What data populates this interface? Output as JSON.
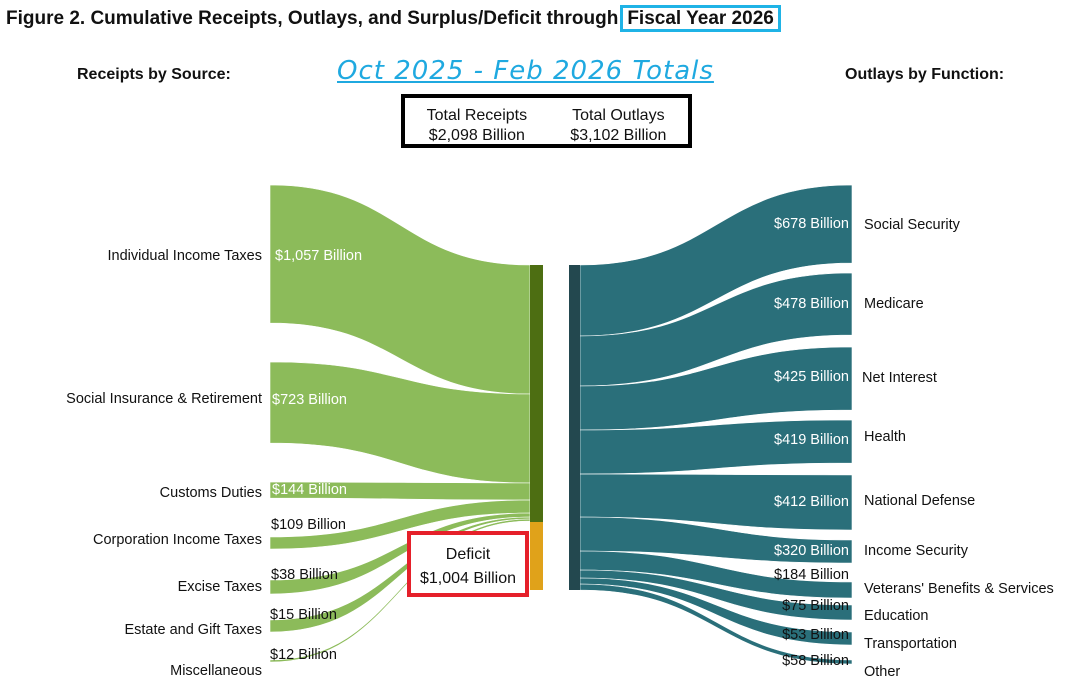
{
  "title": "Figure 2. Cumulative Receipts, Outlays, and Surplus/Deficit through",
  "title_highlight": "Fiscal Year 2026",
  "subtitle": "Oct 2025 - Feb 2026 Totals",
  "receipts_header": "Receipts by Source:",
  "outlays_header": "Outlays by Function:",
  "totals": {
    "receipts_label": "Total Receipts",
    "receipts_value": "$2,098 Billion",
    "outlays_label": "Total Outlays",
    "outlays_value": "$3,102 Billion"
  },
  "deficit": {
    "label": "Deficit",
    "value": "$1,004 Billion"
  },
  "colors": {
    "receipts": "#8cbb5a",
    "receipts_node": "#4d6e12",
    "deficit_node": "#e0a21a",
    "outlays": "#2a6f7a",
    "outlays_node": "#23484f",
    "highlight_box": "#1fb3e6",
    "deficit_box": "#e5202a"
  },
  "receipts": [
    {
      "label": "Individual Income Taxes",
      "value": "$1,057 Billion"
    },
    {
      "label": "Social Insurance & Retirement",
      "value": "$723 Billion"
    },
    {
      "label": "Customs Duties",
      "value": "$144 Billion"
    },
    {
      "label": "Corporation Income Taxes",
      "value": "$109 Billion"
    },
    {
      "label": "Excise Taxes",
      "value": "$38 Billion"
    },
    {
      "label": "Estate and Gift Taxes",
      "value": "$15 Billion"
    },
    {
      "label": "Miscellaneous",
      "value": "$12 Billion"
    }
  ],
  "outlays": [
    {
      "label": "Social Security",
      "value": "$678 Billion"
    },
    {
      "label": "Medicare",
      "value": "$478 Billion"
    },
    {
      "label": "Net Interest",
      "value": "$425 Billion"
    },
    {
      "label": "Health",
      "value": "$419 Billion"
    },
    {
      "label": "National Defense",
      "value": "$412 Billion"
    },
    {
      "label": "Income Security",
      "value": "$320 Billion"
    },
    {
      "label": "Veterans' Benefits & Services",
      "value": "$184 Billion"
    },
    {
      "label": "Education",
      "value": "$75 Billion"
    },
    {
      "label": "Transportation",
      "value": "$53 Billion"
    },
    {
      "label": "Other",
      "value": "$58 Billion"
    }
  ]
}
